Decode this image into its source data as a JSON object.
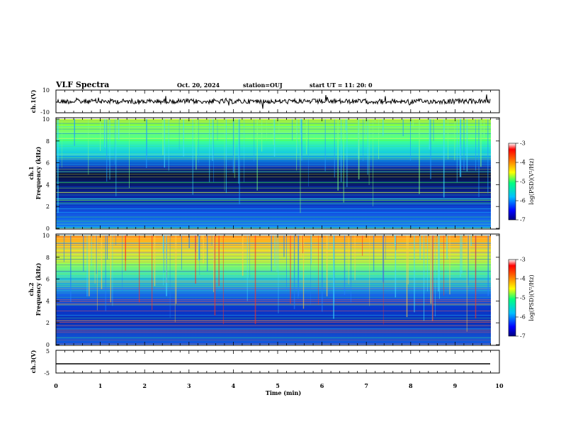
{
  "header": {
    "title": "VLF Spectra",
    "date": "Oct. 20, 2024",
    "station": "station=OUJ",
    "start": "start UT =  11: 20: 0"
  },
  "colorbar": {
    "label": "log(PSD)(V²/Hz)",
    "ticks": [
      "-3",
      "-4",
      "-5",
      "-6",
      "-7"
    ]
  },
  "chart_data": [
    {
      "type": "line",
      "title": "",
      "ylabel": "ch.1(V)",
      "ylim": [
        -10,
        10
      ],
      "yticks": [
        "10",
        "-10"
      ],
      "xlim": [
        0,
        10
      ],
      "series": [
        {
          "x": [
            0,
            9.8
          ],
          "y": [
            0,
            0
          ]
        }
      ]
    },
    {
      "type": "heatmap",
      "ylabel": "ch.1 Frequency (kHz)",
      "ylim": [
        0,
        10
      ],
      "yticks": [
        "10",
        "8",
        "6",
        "4",
        "2",
        "0"
      ],
      "xlim": [
        0,
        10
      ],
      "colorbar_range": [
        -7,
        -3
      ],
      "data_x_extent": [
        0,
        9.8
      ]
    },
    {
      "type": "heatmap",
      "ylabel": "ch.2 Frequency (kHz)",
      "ylim": [
        0,
        10
      ],
      "yticks": [
        "10",
        "8",
        "6",
        "4",
        "2",
        "0"
      ],
      "xlim": [
        0,
        10
      ],
      "colorbar_range": [
        -7,
        -3
      ],
      "data_x_extent": [
        0,
        9.8
      ]
    },
    {
      "type": "line",
      "ylabel": "ch.3(V)",
      "ylim": [
        -5,
        5
      ],
      "yticks": [
        "5",
        "-5"
      ],
      "xlim": [
        0,
        10
      ],
      "series": [
        {
          "x": [
            0,
            9.8
          ],
          "y": [
            -1.5,
            -1.5
          ]
        }
      ]
    }
  ],
  "xaxis": {
    "label": "Time (min)",
    "ticks": [
      "0",
      "1",
      "2",
      "3",
      "4",
      "5",
      "6",
      "7",
      "8",
      "9",
      "10"
    ]
  }
}
